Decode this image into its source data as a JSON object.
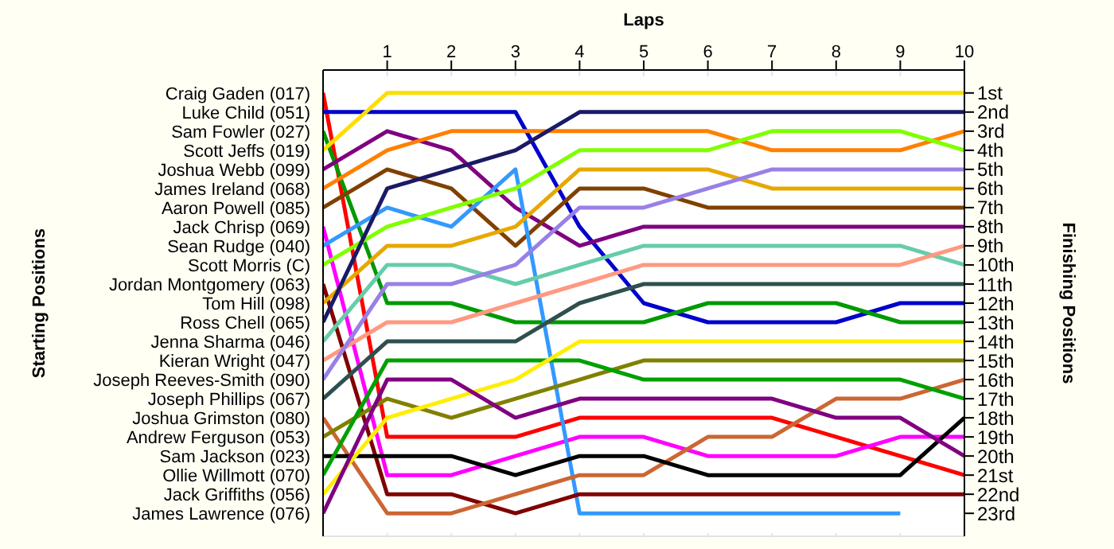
{
  "chart_data": {
    "type": "line",
    "xlabel": "Laps",
    "ylabel": "Finishing Positions",
    "annotations": [
      "Starting Positions"
    ],
    "x": [
      0,
      1,
      2,
      3,
      4,
      5,
      6,
      7,
      8,
      9,
      10
    ],
    "xlim": [
      0,
      10
    ],
    "xticks": [
      1,
      2,
      3,
      4,
      5,
      6,
      7,
      8,
      9,
      10
    ],
    "ylim": [
      24.2,
      -0.2
    ],
    "yticks": [
      {
        "value": 1,
        "label": "1st"
      },
      {
        "value": 2,
        "label": "2nd"
      },
      {
        "value": 3,
        "label": "3rd"
      },
      {
        "value": 4,
        "label": "4th"
      },
      {
        "value": 5,
        "label": "5th"
      },
      {
        "value": 6,
        "label": "6th"
      },
      {
        "value": 7,
        "label": "7th"
      },
      {
        "value": 8,
        "label": "8th"
      },
      {
        "value": 9,
        "label": "9th"
      },
      {
        "value": 10,
        "label": "10th"
      },
      {
        "value": 11,
        "label": "11th"
      },
      {
        "value": 12,
        "label": "12th"
      },
      {
        "value": 13,
        "label": "13th"
      },
      {
        "value": 14,
        "label": "14th"
      },
      {
        "value": 15,
        "label": "15th"
      },
      {
        "value": 16,
        "label": "16th"
      },
      {
        "value": 17,
        "label": "17th"
      },
      {
        "value": 18,
        "label": "18th"
      },
      {
        "value": 19,
        "label": "19th"
      },
      {
        "value": 20,
        "label": "20th"
      },
      {
        "value": 21,
        "label": "21st"
      },
      {
        "value": 22,
        "label": "22nd"
      },
      {
        "value": 23,
        "label": "23rd"
      }
    ],
    "grid": true,
    "marker": "none",
    "line_style": "solid",
    "series": [
      {
        "name": "Craig Gaden (017)",
        "color": "#ff0000",
        "values": [
          1,
          19,
          19,
          19,
          18,
          18,
          18,
          18,
          19,
          20,
          21
        ]
      },
      {
        "name": "Luke Child (051)",
        "color": "#0000cc",
        "values": [
          2,
          2,
          2,
          2,
          8,
          12,
          13,
          13,
          13,
          12,
          12
        ]
      },
      {
        "name": "Sam Fowler (027)",
        "color": "#009900",
        "values": [
          3,
          12,
          12,
          13,
          13,
          13,
          12,
          12,
          12,
          13,
          13
        ]
      },
      {
        "name": "Scott Jeffs (019)",
        "color": "#ffdd00",
        "values": [
          4,
          1,
          1,
          1,
          1,
          1,
          1,
          1,
          1,
          1,
          1
        ]
      },
      {
        "name": "Joshua Webb (099)",
        "color": "#800080",
        "values": [
          5,
          3,
          4,
          7,
          9,
          8,
          8,
          8,
          8,
          8,
          8
        ]
      },
      {
        "name": "James Ireland (068)",
        "color": "#ff8000",
        "values": [
          6,
          4,
          3,
          3,
          3,
          3,
          3,
          4,
          4,
          4,
          3
        ]
      },
      {
        "name": "Aaron Powell (085)",
        "color": "#804000",
        "values": [
          7,
          5,
          6,
          9,
          6,
          6,
          7,
          7,
          7,
          7,
          7
        ]
      },
      {
        "name": "Jack Chrisp (069)",
        "color": "#ff00ff",
        "values": [
          8,
          21,
          21,
          20,
          19,
          19,
          20,
          20,
          20,
          19,
          19
        ]
      },
      {
        "name": "Sean Rudge (040)",
        "color": "#3399ff",
        "values": [
          9,
          7,
          8,
          5,
          23,
          23,
          23,
          23,
          23,
          23,
          null
        ]
      },
      {
        "name": "Scott Morris (C)",
        "color": "#80ff00",
        "values": [
          10,
          8,
          7,
          6,
          4,
          4,
          4,
          3,
          3,
          3,
          4
        ]
      },
      {
        "name": "Jordan Montgomery (063)",
        "color": "#800000",
        "values": [
          11,
          22,
          22,
          23,
          22,
          22,
          22,
          22,
          22,
          22,
          22
        ]
      },
      {
        "name": "Tom Hill (098)",
        "color": "#e6a800",
        "values": [
          12,
          9,
          9,
          8,
          5,
          5,
          5,
          6,
          6,
          6,
          6
        ]
      },
      {
        "name": "Ross Chell (065)",
        "color": "#1a1a66",
        "values": [
          13,
          6,
          5,
          4,
          2,
          2,
          2,
          2,
          2,
          2,
          2
        ]
      },
      {
        "name": "Jenna Sharma (046)",
        "color": "#66ccaa",
        "values": [
          14,
          10,
          10,
          11,
          10,
          9,
          9,
          9,
          9,
          9,
          10
        ]
      },
      {
        "name": "Kieran Wright (047)",
        "color": "#ff9980",
        "values": [
          15,
          13,
          13,
          12,
          11,
          10,
          10,
          10,
          10,
          10,
          9
        ]
      },
      {
        "name": "Joseph Reeves-Smith (090)",
        "color": "#9980e6",
        "values": [
          16,
          11,
          11,
          10,
          7,
          7,
          6,
          5,
          5,
          5,
          5
        ]
      },
      {
        "name": "Joseph Phillips (067)",
        "color": "#2f4f4f",
        "values": [
          17,
          14,
          14,
          14,
          12,
          11,
          11,
          11,
          11,
          11,
          11
        ]
      },
      {
        "name": "Joshua Grimston (080)",
        "color": "#cc6633",
        "values": [
          18,
          23,
          23,
          22,
          21,
          21,
          19,
          19,
          17,
          17,
          16
        ]
      },
      {
        "name": "Andrew Ferguson (053)",
        "color": "#808000",
        "values": [
          19,
          17,
          18,
          17,
          16,
          15,
          15,
          15,
          15,
          15,
          15
        ]
      },
      {
        "name": "Sam Jackson (023)",
        "color": "#000000",
        "values": [
          20,
          20,
          20,
          21,
          20,
          20,
          21,
          21,
          21,
          21,
          18
        ]
      },
      {
        "name": "Ollie Willmott (070)",
        "color": "#00a000",
        "values": [
          21,
          15,
          15,
          15,
          15,
          16,
          16,
          16,
          16,
          16,
          17
        ]
      },
      {
        "name": "Jack Griffiths (056)",
        "color": "#ffee00",
        "values": [
          22,
          18,
          17,
          16,
          14,
          14,
          14,
          14,
          14,
          14,
          14
        ]
      },
      {
        "name": "James Lawrence (076)",
        "color": "#800080",
        "values": [
          23,
          16,
          16,
          18,
          17,
          17,
          17,
          17,
          18,
          18,
          20
        ]
      }
    ]
  }
}
